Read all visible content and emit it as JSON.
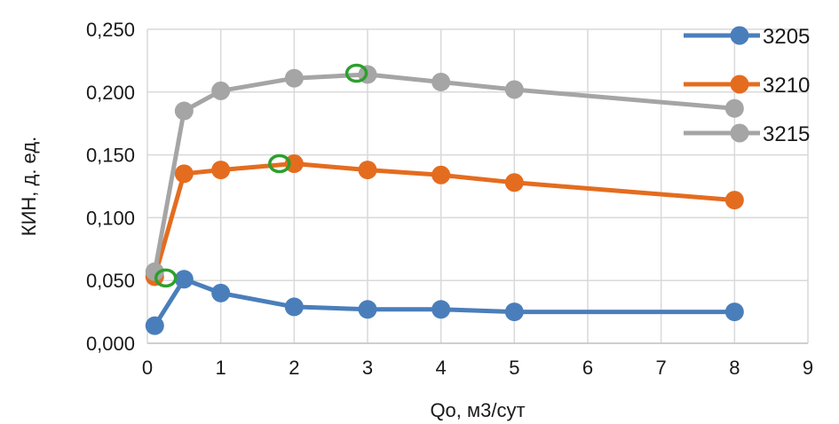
{
  "chart_data": {
    "type": "line",
    "title": "",
    "xlabel": "Qo, м3/сут",
    "ylabel": "КИН, д. ед.",
    "xlim": [
      0,
      9
    ],
    "ylim": [
      0,
      0.25
    ],
    "x_ticks": [
      0,
      1,
      2,
      3,
      4,
      5,
      6,
      7,
      8,
      9
    ],
    "x_tick_labels": [
      "0",
      "1",
      "2",
      "3",
      "4",
      "5",
      "6",
      "7",
      "8",
      "9"
    ],
    "y_ticks": [
      0,
      0.05,
      0.1,
      0.15,
      0.2,
      0.25
    ],
    "y_tick_labels": [
      "0,000",
      "0,050",
      "0,100",
      "0,150",
      "0,200",
      "0,250"
    ],
    "grid": true,
    "legend_position": "top-right",
    "series": [
      {
        "name": "3205",
        "color": "#4a7ebb",
        "x": [
          0.1,
          0.5,
          1,
          2,
          3,
          4,
          5,
          8
        ],
        "y": [
          0.014,
          0.051,
          0.04,
          0.029,
          0.027,
          0.027,
          0.025,
          0.025
        ]
      },
      {
        "name": "3210",
        "color": "#e46c1f",
        "x": [
          0.1,
          0.5,
          1,
          2,
          3,
          4,
          5,
          8
        ],
        "y": [
          0.053,
          0.135,
          0.138,
          0.143,
          0.138,
          0.134,
          0.128,
          0.114
        ]
      },
      {
        "name": "3215",
        "color": "#a5a5a5",
        "x": [
          0.1,
          0.5,
          1,
          2,
          3,
          4,
          5,
          8
        ],
        "y": [
          0.057,
          0.185,
          0.201,
          0.211,
          0.214,
          0.208,
          0.202,
          0.187
        ]
      }
    ],
    "annotations": {
      "type": "open-circle-markers",
      "color": "#2ca02c",
      "points": [
        {
          "x": 0.25,
          "y": 0.052
        },
        {
          "x": 1.8,
          "y": 0.143
        },
        {
          "x": 2.85,
          "y": 0.215
        }
      ]
    }
  }
}
